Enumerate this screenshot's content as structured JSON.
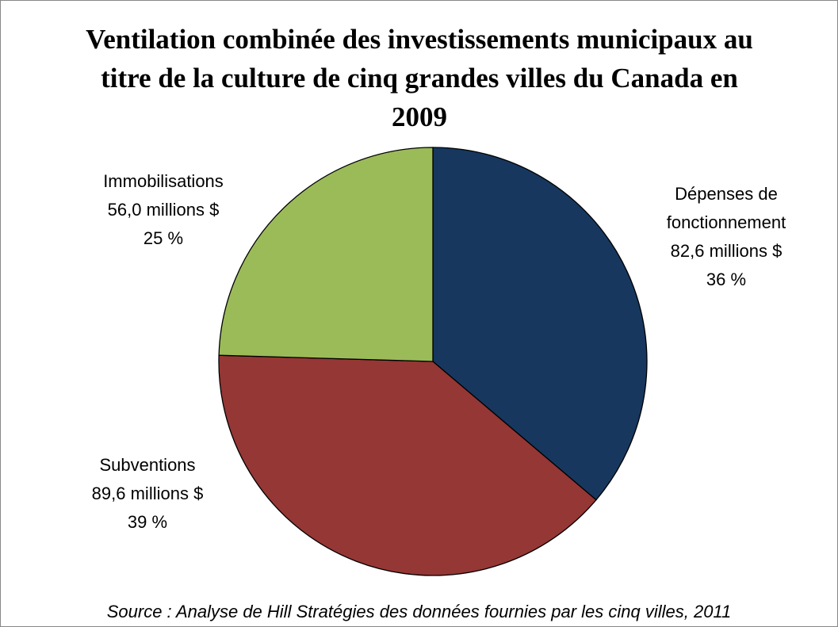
{
  "chart_data": {
    "type": "pie",
    "title": "Ventilation combinée des investissements municipaux au titre de la culture de cinq grandes villes du Canada en 2009",
    "categories": [
      "Dépenses de fonctionnement",
      "Subventions",
      "Immobilisations"
    ],
    "values": [
      82.6,
      89.6,
      56.0
    ],
    "value_labels": [
      "82,6 millions $",
      "89,6 millions $",
      "56,0 millions $"
    ],
    "percent_labels": [
      "36 %",
      "39 %",
      "25 %"
    ],
    "colors": [
      "#17375e",
      "#953735",
      "#9bbb59"
    ],
    "source": "Source : Analyse de Hill Stratégies des données fournies par les cinq villes, 2011"
  }
}
